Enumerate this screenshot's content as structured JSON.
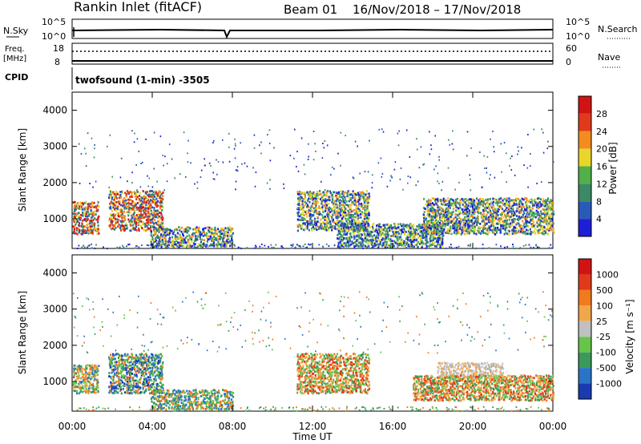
{
  "header": {
    "station": "Rankin Inlet (fitACF)",
    "beam": "Beam 01",
    "dates": "16/Nov/2018 – 17/Nov/2018"
  },
  "strips": {
    "nsky": {
      "label": "N.Sky",
      "top_tick": "10^5",
      "bottom_tick": "10^0"
    },
    "nsearch": {
      "label": "N.Search",
      "top_tick": "10^5",
      "bottom_tick": "10^0"
    },
    "freq": {
      "label_top": "Freq.",
      "label_bottom": "[MHz]",
      "top_tick": "18",
      "bottom_tick": "8"
    },
    "nave": {
      "label": "Nave",
      "top_tick": "60",
      "bottom_tick": "0"
    },
    "cpid": {
      "label": "CPID",
      "text": "twofsound (1-min) -3505"
    }
  },
  "chart_data": [
    {
      "type": "heatmap",
      "panel": "power",
      "xlabel": "",
      "ylabel": "Slant Range [km]",
      "x_ticks": [
        "00:00",
        "04:00",
        "08:00",
        "12:00",
        "16:00",
        "20:00",
        "00:00"
      ],
      "y_ticks": [
        1000,
        2000,
        3000,
        4000
      ],
      "ylim": [
        180,
        4500
      ],
      "xlim_hours": [
        0,
        24
      ],
      "colorbar": {
        "label": "Power [dB]",
        "ticks": [
          "4",
          "8",
          "12",
          "16",
          "20",
          "24",
          "28"
        ],
        "colors": [
          "#1e1ed6",
          "#2a5ab8",
          "#3a8a66",
          "#52b04a",
          "#e8d62a",
          "#f28c1e",
          "#e03a1a",
          "#d01414"
        ]
      },
      "regions": [
        {
          "t0": 0.0,
          "t1": 1.3,
          "r0": 600,
          "r1": 1500,
          "level": "high"
        },
        {
          "t0": 1.8,
          "t1": 4.5,
          "r0": 700,
          "r1": 1800,
          "level": "high"
        },
        {
          "t0": 3.9,
          "t1": 8.0,
          "r0": 250,
          "r1": 800,
          "level": "mid"
        },
        {
          "t0": 11.2,
          "t1": 14.8,
          "r0": 700,
          "r1": 1800,
          "level": "mid"
        },
        {
          "t0": 13.2,
          "t1": 18.5,
          "r0": 250,
          "r1": 900,
          "level": "low"
        },
        {
          "t0": 17.5,
          "t1": 24.0,
          "r0": 600,
          "r1": 1600,
          "level": "mid"
        }
      ]
    },
    {
      "type": "heatmap",
      "panel": "velocity",
      "xlabel": "Time UT",
      "ylabel": "Slant Range [km]",
      "x_ticks": [
        "00:00",
        "04:00",
        "08:00",
        "12:00",
        "16:00",
        "20:00",
        "00:00"
      ],
      "y_ticks": [
        1000,
        2000,
        3000,
        4000
      ],
      "ylim": [
        180,
        4500
      ],
      "xlim_hours": [
        0,
        24
      ],
      "colorbar": {
        "label": "Velocity [m s⁻¹]",
        "ticks": [
          "1000",
          "500",
          "100",
          "25",
          "-25",
          "-100",
          "-500",
          "-1000"
        ],
        "colors": [
          "#1a3ab0",
          "#2a74c8",
          "#3a9a5a",
          "#66c44a",
          "#c0c0c0",
          "#f0a64a",
          "#f07a1e",
          "#e03a1a",
          "#d01414"
        ]
      },
      "regions": [
        {
          "t0": 0.0,
          "t1": 1.3,
          "r0": 700,
          "r1": 1500,
          "level": "mixed"
        },
        {
          "t0": 1.8,
          "t1": 4.5,
          "r0": 700,
          "r1": 1800,
          "level": "blue"
        },
        {
          "t0": 3.9,
          "t1": 8.0,
          "r0": 250,
          "r1": 800,
          "level": "green"
        },
        {
          "t0": 11.2,
          "t1": 14.8,
          "r0": 700,
          "r1": 1800,
          "level": "orange"
        },
        {
          "t0": 18.2,
          "t1": 21.5,
          "r0": 1100,
          "r1": 1550,
          "level": "grey"
        },
        {
          "t0": 17.0,
          "t1": 24.0,
          "r0": 500,
          "r1": 1200,
          "level": "orange"
        }
      ]
    }
  ]
}
